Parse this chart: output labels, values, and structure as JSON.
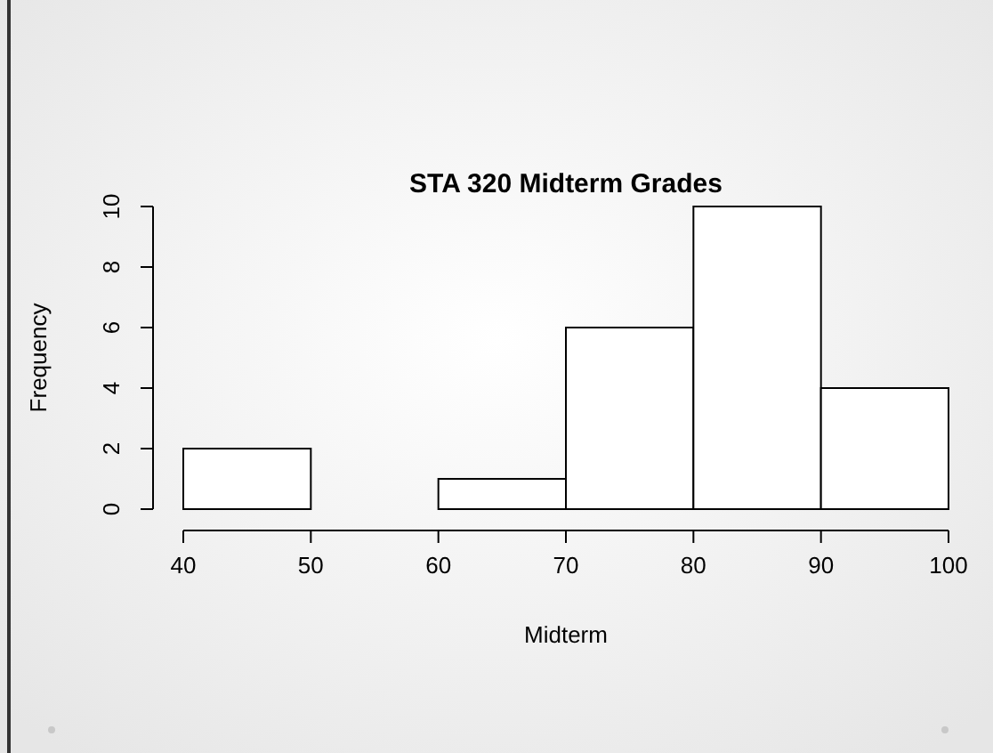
{
  "chart_data": {
    "type": "histogram",
    "title": "STA 320 Midterm Grades",
    "xlabel": "Midterm",
    "ylabel": "Frequency",
    "bins": [
      40,
      50,
      60,
      70,
      80,
      90,
      100
    ],
    "values": [
      2,
      0,
      1,
      6,
      10,
      4
    ],
    "color": "#ffffff",
    "xlim": [
      40,
      100
    ],
    "xticks": [
      40,
      50,
      60,
      70,
      80,
      90,
      100
    ],
    "ylim": [
      0,
      10
    ],
    "yticks": [
      0,
      2,
      4,
      6,
      8,
      10
    ],
    "grid": false
  }
}
